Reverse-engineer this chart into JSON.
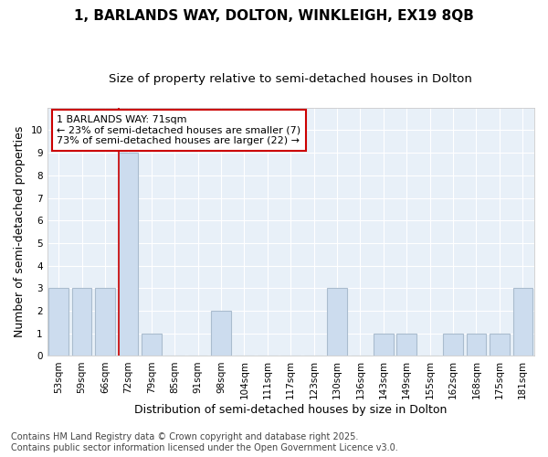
{
  "title_line1": "1, BARLANDS WAY, DOLTON, WINKLEIGH, EX19 8QB",
  "title_line2": "Size of property relative to semi-detached houses in Dolton",
  "xlabel": "Distribution of semi-detached houses by size in Dolton",
  "ylabel": "Number of semi-detached properties",
  "categories": [
    "53sqm",
    "59sqm",
    "66sqm",
    "72sqm",
    "79sqm",
    "85sqm",
    "91sqm",
    "98sqm",
    "104sqm",
    "111sqm",
    "117sqm",
    "123sqm",
    "130sqm",
    "136sqm",
    "143sqm",
    "149sqm",
    "155sqm",
    "162sqm",
    "168sqm",
    "175sqm",
    "181sqm"
  ],
  "values": [
    3,
    3,
    3,
    9,
    1,
    0,
    0,
    2,
    0,
    0,
    0,
    0,
    3,
    0,
    1,
    1,
    0,
    1,
    1,
    1,
    3
  ],
  "bar_color": "#ccdcee",
  "bar_edge_color": "#aabcce",
  "vline_index": 3,
  "vline_color": "#cc0000",
  "annotation_text": "1 BARLANDS WAY: 71sqm\n← 23% of semi-detached houses are smaller (7)\n73% of semi-detached houses are larger (22) →",
  "annotation_box_color": "#ffffff",
  "annotation_box_edge": "#cc0000",
  "ylim": [
    0,
    11
  ],
  "yticks": [
    0,
    1,
    2,
    3,
    4,
    5,
    6,
    7,
    8,
    9,
    10,
    11
  ],
  "background_color": "#ffffff",
  "plot_bg_color": "#e8f0f8",
  "grid_color": "#ffffff",
  "footer_line1": "Contains HM Land Registry data © Crown copyright and database right 2025.",
  "footer_line2": "Contains public sector information licensed under the Open Government Licence v3.0.",
  "title_fontsize": 11,
  "subtitle_fontsize": 9.5,
  "axis_label_fontsize": 9,
  "tick_fontsize": 7.5,
  "annotation_fontsize": 8,
  "footer_fontsize": 7
}
